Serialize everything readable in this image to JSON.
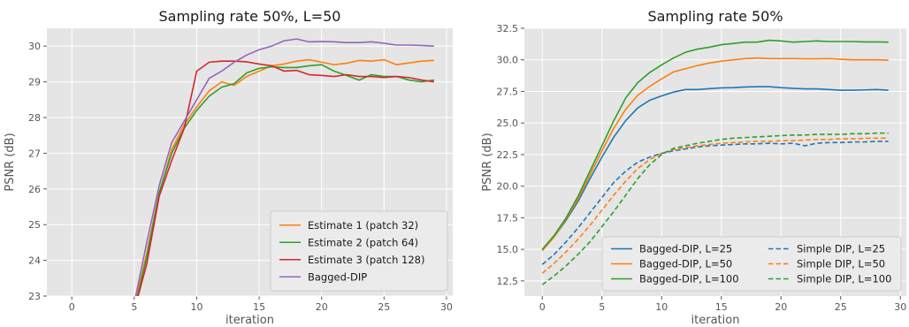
{
  "chart_data": [
    {
      "type": "line",
      "title": "Sampling rate 50%, L=50",
      "xlabel": "iteration",
      "ylabel": "PSNR (dB)",
      "xlim": [
        -2,
        30.5
      ],
      "ylim": [
        23,
        30.5
      ],
      "xticks": [
        0,
        5,
        10,
        15,
        20,
        25,
        30
      ],
      "yticks": [
        23,
        24,
        25,
        26,
        27,
        28,
        29,
        30
      ],
      "grid": true,
      "legend_position": "lower-right",
      "series": [
        {
          "name": "Estimate 1 (patch 32)",
          "color": "#ff7f0e",
          "dash": "solid",
          "x": [
            5,
            6,
            7,
            8,
            9,
            10,
            11,
            12,
            13,
            14,
            15,
            16,
            17,
            18,
            19,
            20,
            21,
            22,
            23,
            24,
            25,
            26,
            27,
            28,
            29
          ],
          "y": [
            22.7,
            24.2,
            25.9,
            27.1,
            27.8,
            28.3,
            28.75,
            29.0,
            28.9,
            29.15,
            29.3,
            29.45,
            29.5,
            29.58,
            29.62,
            29.55,
            29.48,
            29.52,
            29.6,
            29.58,
            29.62,
            29.48,
            29.53,
            29.58,
            29.6
          ]
        },
        {
          "name": "Estimate 2 (patch 64)",
          "color": "#2ca02c",
          "dash": "solid",
          "x": [
            5,
            6,
            7,
            8,
            9,
            10,
            11,
            12,
            13,
            14,
            15,
            16,
            17,
            18,
            19,
            20,
            21,
            22,
            23,
            24,
            25,
            26,
            27,
            28,
            29
          ],
          "y": [
            22.6,
            24.1,
            25.9,
            27.0,
            27.7,
            28.2,
            28.6,
            28.85,
            28.95,
            29.25,
            29.38,
            29.42,
            29.4,
            29.4,
            29.45,
            29.48,
            29.3,
            29.18,
            29.05,
            29.2,
            29.15,
            29.15,
            29.05,
            29.0,
            29.05
          ]
        },
        {
          "name": "Estimate 3 (patch 128)",
          "color": "#d62728",
          "dash": "solid",
          "x": [
            5,
            6,
            7,
            8,
            9,
            10,
            11,
            12,
            13,
            14,
            15,
            16,
            17,
            18,
            19,
            20,
            21,
            22,
            23,
            24,
            25,
            26,
            27,
            28,
            29
          ],
          "y": [
            22.6,
            23.9,
            25.8,
            26.8,
            27.7,
            29.3,
            29.55,
            29.58,
            29.58,
            29.56,
            29.5,
            29.45,
            29.3,
            29.32,
            29.2,
            29.18,
            29.15,
            29.2,
            29.15,
            29.15,
            29.12,
            29.15,
            29.12,
            29.05,
            29.0
          ]
        },
        {
          "name": "Bagged-DIP",
          "color": "#9467bd",
          "dash": "solid",
          "x": [
            5,
            6,
            7,
            8,
            9,
            10,
            11,
            12,
            13,
            14,
            15,
            16,
            17,
            18,
            19,
            20,
            21,
            22,
            23,
            24,
            25,
            26,
            27,
            28,
            29
          ],
          "y": [
            22.8,
            24.5,
            26.1,
            27.3,
            27.9,
            28.5,
            29.1,
            29.3,
            29.55,
            29.75,
            29.9,
            30.0,
            30.15,
            30.2,
            30.12,
            30.13,
            30.12,
            30.1,
            30.1,
            30.12,
            30.08,
            30.03,
            30.03,
            30.02,
            30.0
          ]
        }
      ]
    },
    {
      "type": "line",
      "title": "Sampling rate 50%",
      "xlabel": "iteration",
      "ylabel": "PSNR (dB)",
      "xlim": [
        -1.5,
        30.5
      ],
      "ylim": [
        11.3,
        32.5
      ],
      "xticks": [
        0,
        5,
        10,
        15,
        20,
        25,
        30
      ],
      "yticks": [
        12.5,
        15.0,
        17.5,
        20.0,
        22.5,
        25.0,
        27.5,
        30.0,
        32.5
      ],
      "grid": true,
      "legend_position": "lower-right",
      "legend_columns": 2,
      "series": [
        {
          "name": "Bagged-DIP, L=25",
          "color": "#1f77b4",
          "dash": "solid",
          "x": [
            0,
            1,
            2,
            3,
            4,
            5,
            6,
            7,
            8,
            9,
            10,
            11,
            12,
            13,
            14,
            15,
            16,
            17,
            18,
            19,
            20,
            21,
            22,
            23,
            24,
            25,
            26,
            27,
            28,
            29
          ],
          "y": [
            14.9,
            16.0,
            17.3,
            18.8,
            20.6,
            22.3,
            23.9,
            25.2,
            26.2,
            26.8,
            27.15,
            27.45,
            27.65,
            27.65,
            27.72,
            27.78,
            27.8,
            27.85,
            27.88,
            27.88,
            27.8,
            27.75,
            27.7,
            27.7,
            27.65,
            27.6,
            27.6,
            27.62,
            27.65,
            27.6
          ]
        },
        {
          "name": "Bagged-DIP, L=50",
          "color": "#ff7f0e",
          "dash": "solid",
          "x": [
            0,
            1,
            2,
            3,
            4,
            5,
            6,
            7,
            8,
            9,
            10,
            11,
            12,
            13,
            14,
            15,
            16,
            17,
            18,
            19,
            20,
            21,
            22,
            23,
            24,
            25,
            26,
            27,
            28,
            29
          ],
          "y": [
            14.9,
            16.0,
            17.4,
            19.0,
            20.9,
            22.8,
            24.6,
            26.1,
            27.2,
            27.9,
            28.5,
            29.05,
            29.3,
            29.55,
            29.75,
            29.9,
            30.0,
            30.1,
            30.15,
            30.1,
            30.1,
            30.1,
            30.08,
            30.08,
            30.1,
            30.05,
            30.0,
            30.0,
            30.0,
            29.98
          ]
        },
        {
          "name": "Bagged-DIP, L=100",
          "color": "#2ca02c",
          "dash": "solid",
          "x": [
            0,
            1,
            2,
            3,
            4,
            5,
            6,
            7,
            8,
            9,
            10,
            11,
            12,
            13,
            14,
            15,
            16,
            17,
            18,
            19,
            20,
            21,
            22,
            23,
            24,
            25,
            26,
            27,
            28,
            29
          ],
          "y": [
            15.0,
            16.1,
            17.5,
            19.2,
            21.2,
            23.2,
            25.2,
            27.0,
            28.2,
            29.0,
            29.6,
            30.15,
            30.6,
            30.85,
            31.0,
            31.2,
            31.3,
            31.4,
            31.4,
            31.55,
            31.5,
            31.4,
            31.45,
            31.5,
            31.45,
            31.45,
            31.45,
            31.42,
            31.42,
            31.4
          ]
        },
        {
          "name": "Simple DIP, L=25",
          "color": "#1f77b4",
          "dash": "dashed",
          "x": [
            0,
            1,
            2,
            3,
            4,
            5,
            6,
            7,
            8,
            9,
            10,
            11,
            12,
            13,
            14,
            15,
            16,
            17,
            18,
            19,
            20,
            21,
            22,
            23,
            24,
            25,
            26,
            27,
            28,
            29
          ],
          "y": [
            13.8,
            14.6,
            15.6,
            16.7,
            17.9,
            19.1,
            20.3,
            21.2,
            21.9,
            22.3,
            22.6,
            22.8,
            22.95,
            23.1,
            23.2,
            23.25,
            23.3,
            23.35,
            23.35,
            23.4,
            23.35,
            23.4,
            23.2,
            23.4,
            23.45,
            23.45,
            23.5,
            23.5,
            23.55,
            23.55
          ]
        },
        {
          "name": "Simple DIP, L=50",
          "color": "#ff7f0e",
          "dash": "dashed",
          "x": [
            0,
            1,
            2,
            3,
            4,
            5,
            6,
            7,
            8,
            9,
            10,
            11,
            12,
            13,
            14,
            15,
            16,
            17,
            18,
            19,
            20,
            21,
            22,
            23,
            24,
            25,
            26,
            27,
            28,
            29
          ],
          "y": [
            13.1,
            13.9,
            14.8,
            15.8,
            16.9,
            18.1,
            19.3,
            20.4,
            21.4,
            22.1,
            22.6,
            22.9,
            23.05,
            23.2,
            23.3,
            23.4,
            23.45,
            23.5,
            23.55,
            23.55,
            23.6,
            23.6,
            23.65,
            23.7,
            23.7,
            23.75,
            23.75,
            23.78,
            23.8,
            23.8
          ]
        },
        {
          "name": "Simple DIP, L=100",
          "color": "#2ca02c",
          "dash": "dashed",
          "x": [
            0,
            1,
            2,
            3,
            4,
            5,
            6,
            7,
            8,
            9,
            10,
            11,
            12,
            13,
            14,
            15,
            16,
            17,
            18,
            19,
            20,
            21,
            22,
            23,
            24,
            25,
            26,
            27,
            28,
            29
          ],
          "y": [
            12.2,
            12.9,
            13.7,
            14.6,
            15.6,
            16.8,
            18.0,
            19.3,
            20.6,
            21.7,
            22.5,
            23.0,
            23.2,
            23.4,
            23.55,
            23.7,
            23.8,
            23.85,
            23.9,
            23.95,
            24.0,
            24.05,
            24.05,
            24.1,
            24.1,
            24.1,
            24.15,
            24.15,
            24.2,
            24.2
          ]
        }
      ]
    }
  ]
}
